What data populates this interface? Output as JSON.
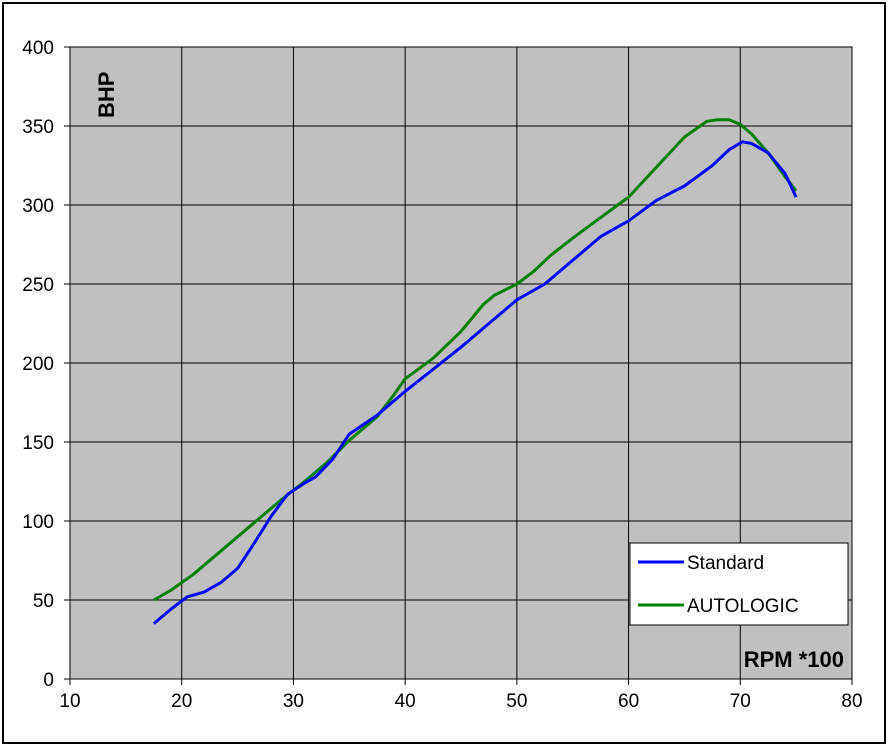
{
  "chart_data": {
    "type": "line",
    "title": "",
    "xlabel": "RPM *100",
    "ylabel": "BHP",
    "xlim": [
      10,
      80
    ],
    "ylim": [
      0,
      400
    ],
    "x_ticks": [
      10,
      20,
      30,
      40,
      50,
      60,
      70,
      80
    ],
    "y_ticks": [
      0,
      50,
      100,
      150,
      200,
      250,
      300,
      350,
      400
    ],
    "grid": true,
    "legend_position": "bottom-right",
    "plot_background": "#c0c0c0",
    "series": [
      {
        "name": "Standard",
        "color": "#0000ff",
        "x": [
          17.5,
          19,
          20.5,
          22,
          23.5,
          25,
          26.5,
          28,
          29.5,
          31,
          32,
          33.5,
          35,
          37.5,
          40,
          42.5,
          45,
          47.5,
          50,
          52.5,
          55,
          57.5,
          60,
          62.5,
          65,
          67.5,
          69,
          70.2,
          71,
          72.5,
          74,
          75
        ],
        "values": [
          35,
          44,
          52,
          55,
          61,
          70,
          86,
          103,
          117,
          124,
          128,
          139,
          155,
          167,
          182,
          196,
          210,
          225,
          240,
          250,
          265,
          280,
          290,
          303,
          312,
          325,
          335,
          340,
          339,
          333,
          320,
          305
        ]
      },
      {
        "name": "AUTOLOGIC",
        "color": "#008000",
        "x": [
          17.5,
          19,
          21,
          23,
          25,
          27,
          29,
          31,
          33,
          35,
          37.5,
          39,
          40,
          42.5,
          45,
          47,
          48,
          50,
          51.5,
          53,
          55,
          57.5,
          60,
          62.5,
          65,
          67,
          68,
          69,
          70,
          71,
          72.5,
          74,
          75
        ],
        "values": [
          50,
          56,
          66,
          78,
          90,
          102,
          114,
          125,
          137,
          151,
          166,
          180,
          190,
          203,
          220,
          237,
          243,
          250,
          258,
          268,
          279,
          292,
          305,
          324,
          343,
          353,
          354,
          354,
          351,
          345,
          333,
          318,
          309
        ]
      }
    ]
  }
}
